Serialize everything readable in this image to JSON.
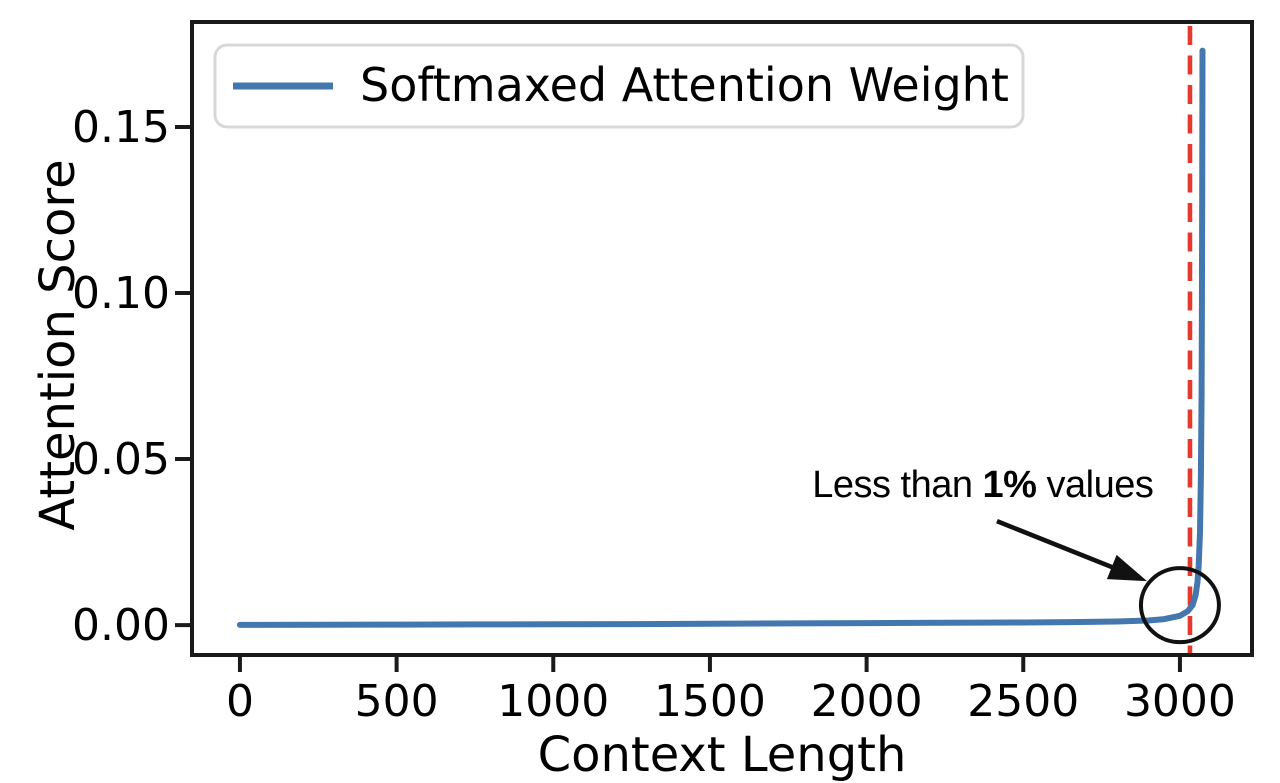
{
  "chart_data": {
    "type": "line",
    "title": "",
    "xlabel": "Context Length",
    "ylabel": "Attention Score",
    "grid": false,
    "xlim": [
      -153,
      3230
    ],
    "ylim": [
      -0.009,
      0.1816
    ],
    "x_ticks": {
      "values": [
        0,
        500,
        1000,
        1500,
        2000,
        2500,
        3000
      ],
      "labels": [
        "0",
        "500",
        "1000",
        "1500",
        "2000",
        "2500",
        "3000"
      ]
    },
    "y_ticks": {
      "values": [
        0,
        0.05,
        0.1,
        0.15
      ],
      "labels": [
        "0.00",
        "0.05",
        "0.10",
        "0.15"
      ]
    },
    "legend": {
      "position": "upper-left",
      "entries": [
        {
          "label": "Softmaxed Attention Weight",
          "color": "#4377ae"
        }
      ]
    },
    "series": [
      {
        "name": "Softmaxed Attention Weight",
        "color": "#4377ae",
        "points": [
          [
            0,
            5e-05
          ],
          [
            250,
            0.0001
          ],
          [
            500,
            0.00015
          ],
          [
            750,
            0.0002
          ],
          [
            1000,
            0.00025
          ],
          [
            1250,
            0.0003
          ],
          [
            1500,
            0.0004
          ],
          [
            1750,
            0.0005
          ],
          [
            2000,
            0.0006
          ],
          [
            2250,
            0.0007
          ],
          [
            2500,
            0.0008
          ],
          [
            2650,
            0.0009
          ],
          [
            2800,
            0.0011
          ],
          [
            2900,
            0.0014
          ],
          [
            2950,
            0.0018
          ],
          [
            3000,
            0.0028
          ],
          [
            3025,
            0.0042
          ],
          [
            3040,
            0.006
          ],
          [
            3050,
            0.009
          ],
          [
            3056,
            0.013
          ],
          [
            3060,
            0.018
          ],
          [
            3064,
            0.028
          ],
          [
            3067,
            0.045
          ],
          [
            3069,
            0.07
          ],
          [
            3070,
            0.095
          ],
          [
            3071,
            0.13
          ],
          [
            3072,
            0.173
          ]
        ]
      }
    ],
    "vline": {
      "x": 3032,
      "color": "#e6392d",
      "style": "dashed"
    },
    "annotation": {
      "text_prefix": "Less than ",
      "text_bold": "1%",
      "text_suffix": " values",
      "text_xy": [
        2371,
        0.03855
      ],
      "arrow_from": [
        2416,
        0.0313
      ],
      "arrow_to": [
        2895,
        0.01325
      ],
      "circle_center": [
        3000,
        0.006
      ],
      "circle_radius_px": [
        39,
        37
      ],
      "color": "#111111"
    },
    "colors": {
      "frame": "#1a1a1a",
      "text": "#000000",
      "legend_border": "#d8d8d8"
    }
  }
}
